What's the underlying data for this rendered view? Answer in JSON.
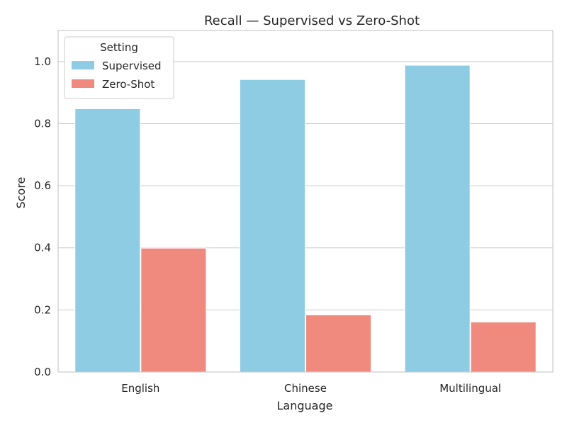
{
  "chart_data": {
    "type": "bar",
    "title": "Recall — Supervised vs Zero-Shot",
    "xlabel": "Language",
    "ylabel": "Score",
    "categories": [
      "English",
      "Chinese",
      "Multilingual"
    ],
    "series": [
      {
        "name": "Supervised",
        "values": [
          0.848,
          0.942,
          0.988
        ],
        "color": "#8ecce3"
      },
      {
        "name": "Zero-Shot",
        "values": [
          0.399,
          0.184,
          0.161
        ],
        "color": "#f08a7e"
      }
    ],
    "ylim": [
      0,
      1.1
    ],
    "yticks": [
      "0.0",
      "0.2",
      "0.4",
      "0.6",
      "0.8",
      "1.0"
    ],
    "grid": true,
    "legend": {
      "title": "Setting",
      "placement": "top-left"
    }
  }
}
